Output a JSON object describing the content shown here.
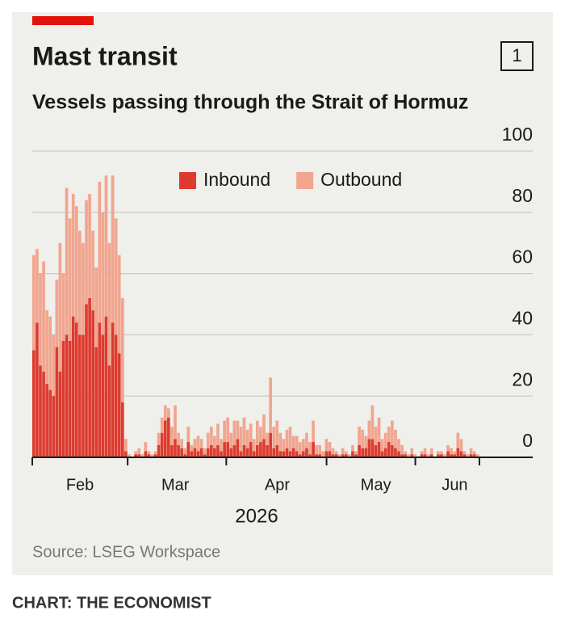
{
  "chart_data": {
    "type": "bar",
    "stacked": true,
    "title": "Mast transit",
    "badge": "1",
    "subtitle": "Vessels passing through the Strait of Hormuz",
    "x_label": "2026",
    "source": "Source: LSEG Workspace",
    "categories": [
      null,
      null,
      null,
      null,
      null,
      null,
      null,
      null,
      null,
      null,
      null,
      null,
      null,
      null,
      "Feb",
      null,
      null,
      null,
      null,
      null,
      null,
      null,
      null,
      null,
      null,
      null,
      null,
      null,
      null,
      null,
      null,
      null,
      null,
      null,
      null,
      null,
      null,
      null,
      null,
      null,
      null,
      null,
      null,
      "Mar",
      null,
      null,
      null,
      null,
      null,
      null,
      null,
      null,
      null,
      null,
      null,
      null,
      null,
      null,
      null,
      null,
      null,
      null,
      null,
      null,
      null,
      null,
      null,
      null,
      null,
      null,
      null,
      null,
      null,
      null,
      "Apr",
      null,
      null,
      null,
      null,
      null,
      null,
      null,
      null,
      null,
      null,
      null,
      null,
      null,
      null,
      null,
      null,
      null,
      null,
      null,
      null,
      null,
      null,
      null,
      null,
      null,
      null,
      null,
      null,
      null,
      "May",
      null,
      null,
      null,
      null,
      null,
      null,
      null,
      null,
      null,
      null,
      null,
      null,
      null,
      null,
      null,
      null,
      null,
      null,
      null,
      null,
      null,
      null,
      null,
      "Jun",
      null,
      null,
      null,
      null,
      null,
      null,
      null
    ],
    "series": [
      {
        "name": "Inbound",
        "color": "#dd3b2f",
        "values": [
          35,
          44,
          30,
          28,
          24,
          22,
          20,
          36,
          28,
          38,
          40,
          38,
          46,
          44,
          40,
          40,
          50,
          52,
          48,
          36,
          44,
          40,
          46,
          30,
          44,
          40,
          34,
          18,
          2,
          0,
          0,
          1,
          1,
          0,
          2,
          1,
          0,
          1,
          4,
          8,
          12,
          13,
          4,
          6,
          4,
          3,
          1,
          5,
          2,
          3,
          2,
          3,
          1,
          3,
          4,
          3,
          4,
          2,
          5,
          5,
          3,
          4,
          6,
          2,
          4,
          3,
          5,
          2,
          4,
          5,
          6,
          4,
          8,
          3,
          4,
          2,
          2,
          3,
          2,
          3,
          2,
          1,
          2,
          3,
          1,
          5,
          1,
          1,
          0,
          2,
          2,
          1,
          1,
          0,
          1,
          1,
          0,
          2,
          1,
          4,
          3,
          3,
          6,
          6,
          4,
          5,
          2,
          3,
          5,
          4,
          3,
          2,
          1,
          1,
          0,
          1,
          0,
          0,
          1,
          1,
          0,
          1,
          0,
          1,
          1,
          0,
          2,
          1,
          1,
          3,
          2,
          1,
          0,
          1,
          1,
          0
        ]
      },
      {
        "name": "Outbound",
        "color": "#f1a58f",
        "values": [
          31,
          24,
          30,
          36,
          24,
          24,
          20,
          22,
          42,
          22,
          48,
          40,
          40,
          38,
          34,
          30,
          34,
          34,
          26,
          26,
          46,
          40,
          46,
          40,
          48,
          38,
          32,
          34,
          4,
          1,
          0,
          1,
          2,
          1,
          3,
          1,
          1,
          1,
          4,
          5,
          5,
          3,
          6,
          11,
          4,
          3,
          2,
          5,
          2,
          3,
          5,
          3,
          2,
          5,
          6,
          4,
          7,
          4,
          7,
          8,
          5,
          8,
          6,
          8,
          9,
          6,
          6,
          4,
          8,
          5,
          8,
          4,
          18,
          7,
          8,
          6,
          4,
          6,
          8,
          4,
          5,
          4,
          4,
          5,
          4,
          7,
          3,
          3,
          2,
          4,
          3,
          2,
          1,
          1,
          2,
          1,
          1,
          2,
          1,
          6,
          6,
          4,
          6,
          11,
          6,
          8,
          4,
          5,
          5,
          8,
          6,
          4,
          3,
          1,
          1,
          2,
          1,
          0,
          1,
          2,
          1,
          2,
          0,
          1,
          1,
          1,
          2,
          2,
          1,
          5,
          4,
          1,
          1,
          2,
          1,
          1
        ]
      }
    ],
    "ylim": [
      0,
      100
    ],
    "yticks": [
      0,
      20,
      40,
      60,
      80,
      100
    ],
    "grid": true
  },
  "footer": "CHART: THE ECONOMIST"
}
